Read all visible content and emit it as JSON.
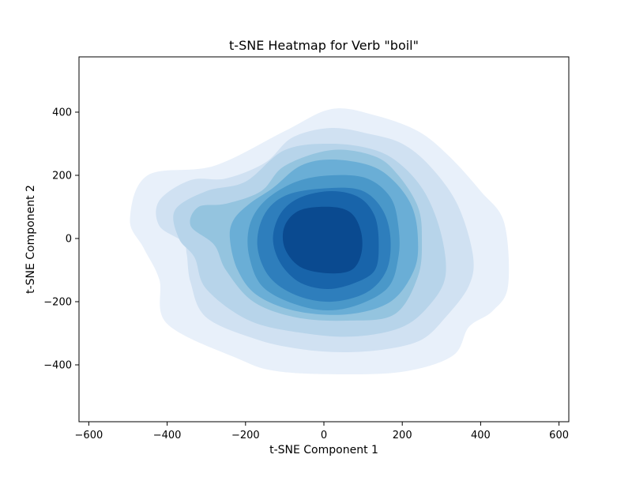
{
  "chart_data": {
    "type": "heatmap",
    "subtype": "kde-filled-contour",
    "title": "t-SNE Heatmap for Verb \"boil\"",
    "xlabel": "t-SNE Component 1",
    "ylabel": "t-SNE Component 2",
    "xlim": [
      -625,
      625
    ],
    "ylim": [
      -580,
      575
    ],
    "x_ticks": [
      -600,
      -400,
      -200,
      0,
      200,
      400,
      600
    ],
    "y_ticks": [
      -400,
      -200,
      0,
      200,
      400
    ],
    "x_tick_labels": [
      "−600",
      "−400",
      "−200",
      "0",
      "200",
      "400",
      "600"
    ],
    "y_tick_labels": [
      "−400",
      "−200",
      "0",
      "200",
      "400"
    ],
    "grid": false,
    "legend": "none",
    "colormap": "Blues",
    "levels": [
      {
        "level": 1,
        "color": "#e8f0fa",
        "polygon": [
          [
            20,
            410
          ],
          [
            130,
            390
          ],
          [
            240,
            340
          ],
          [
            320,
            260
          ],
          [
            400,
            150
          ],
          [
            460,
            50
          ],
          [
            470,
            -150
          ],
          [
            430,
            -230
          ],
          [
            370,
            -280
          ],
          [
            330,
            -370
          ],
          [
            210,
            -420
          ],
          [
            50,
            -430
          ],
          [
            -120,
            -420
          ],
          [
            -220,
            -380
          ],
          [
            -400,
            -270
          ],
          [
            -420,
            -130
          ],
          [
            -460,
            -30
          ],
          [
            -495,
            60
          ],
          [
            -450,
            200
          ],
          [
            -280,
            230
          ],
          [
            -100,
            340
          ]
        ]
      },
      {
        "level": 2,
        "color": "#d0e1f2",
        "polygon": [
          [
            20,
            350
          ],
          [
            120,
            330
          ],
          [
            200,
            300
          ],
          [
            270,
            230
          ],
          [
            340,
            110
          ],
          [
            380,
            -50
          ],
          [
            370,
            -150
          ],
          [
            310,
            -250
          ],
          [
            250,
            -320
          ],
          [
            160,
            -350
          ],
          [
            50,
            -360
          ],
          [
            -60,
            -350
          ],
          [
            -170,
            -320
          ],
          [
            -300,
            -250
          ],
          [
            -340,
            -140
          ],
          [
            -350,
            -50
          ],
          [
            -360,
            -10
          ],
          [
            -420,
            40
          ],
          [
            -420,
            120
          ],
          [
            -340,
            185
          ],
          [
            -250,
            190
          ],
          [
            -150,
            240
          ],
          [
            -80,
            320
          ]
        ]
      },
      {
        "level": 3,
        "color": "#b7d4ea",
        "polygon": [
          [
            20,
            300
          ],
          [
            130,
            280
          ],
          [
            200,
            230
          ],
          [
            260,
            140
          ],
          [
            300,
            10
          ],
          [
            310,
            -120
          ],
          [
            270,
            -210
          ],
          [
            200,
            -280
          ],
          [
            80,
            -310
          ],
          [
            -50,
            -300
          ],
          [
            -190,
            -260
          ],
          [
            -300,
            -160
          ],
          [
            -330,
            -60
          ],
          [
            -370,
            0
          ],
          [
            -380,
            90
          ],
          [
            -300,
            150
          ],
          [
            -200,
            180
          ],
          [
            -100,
            280
          ]
        ]
      },
      {
        "level": 4,
        "color": "#94c4df",
        "polygon": [
          [
            20,
            280
          ],
          [
            130,
            260
          ],
          [
            190,
            200
          ],
          [
            240,
            100
          ],
          [
            250,
            0
          ],
          [
            240,
            -120
          ],
          [
            180,
            -240
          ],
          [
            60,
            -260
          ],
          [
            -70,
            -250
          ],
          [
            -180,
            -200
          ],
          [
            -250,
            -100
          ],
          [
            -280,
            -20
          ],
          [
            -340,
            40
          ],
          [
            -320,
            100
          ],
          [
            -250,
            110
          ],
          [
            -160,
            150
          ],
          [
            -100,
            230
          ]
        ]
      },
      {
        "level": 5,
        "color": "#6aaed6",
        "polygon": [
          [
            20,
            250
          ],
          [
            120,
            230
          ],
          [
            180,
            180
          ],
          [
            225,
            100
          ],
          [
            240,
            0
          ],
          [
            230,
            -100
          ],
          [
            170,
            -200
          ],
          [
            60,
            -240
          ],
          [
            -70,
            -230
          ],
          [
            -170,
            -180
          ],
          [
            -220,
            -100
          ],
          [
            -240,
            0
          ],
          [
            -230,
            60
          ],
          [
            -190,
            110
          ],
          [
            -130,
            160
          ],
          [
            -60,
            230
          ]
        ]
      },
      {
        "level": 6,
        "color": "#4a98c9",
        "polygon": [
          [
            20,
            200
          ],
          [
            110,
            190
          ],
          [
            170,
            130
          ],
          [
            190,
            40
          ],
          [
            190,
            -60
          ],
          [
            160,
            -160
          ],
          [
            60,
            -220
          ],
          [
            -40,
            -220
          ],
          [
            -150,
            -160
          ],
          [
            -190,
            -60
          ],
          [
            -190,
            40
          ],
          [
            -150,
            120
          ],
          [
            -70,
            180
          ]
        ]
      },
      {
        "level": 7,
        "color": "#2e7ebc",
        "polygon": [
          [
            20,
            160
          ],
          [
            100,
            150
          ],
          [
            150,
            90
          ],
          [
            170,
            0
          ],
          [
            160,
            -100
          ],
          [
            110,
            -170
          ],
          [
            20,
            -200
          ],
          [
            -70,
            -180
          ],
          [
            -140,
            -120
          ],
          [
            -170,
            -20
          ],
          [
            -150,
            80
          ],
          [
            -90,
            140
          ]
        ]
      },
      {
        "level": 8,
        "color": "#1864aa",
        "polygon": [
          [
            20,
            150
          ],
          [
            90,
            130
          ],
          [
            130,
            70
          ],
          [
            140,
            -20
          ],
          [
            130,
            -100
          ],
          [
            80,
            -140
          ],
          [
            10,
            -160
          ],
          [
            -60,
            -140
          ],
          [
            -110,
            -80
          ],
          [
            -130,
            0
          ],
          [
            -110,
            80
          ],
          [
            -60,
            130
          ]
        ]
      },
      {
        "level": 9,
        "color": "#0a4a90",
        "polygon": [
          [
            20,
            100
          ],
          [
            70,
            80
          ],
          [
            95,
            20
          ],
          [
            95,
            -50
          ],
          [
            70,
            -100
          ],
          [
            10,
            -110
          ],
          [
            -60,
            -90
          ],
          [
            -100,
            -30
          ],
          [
            -100,
            40
          ],
          [
            -60,
            90
          ]
        ]
      }
    ]
  }
}
